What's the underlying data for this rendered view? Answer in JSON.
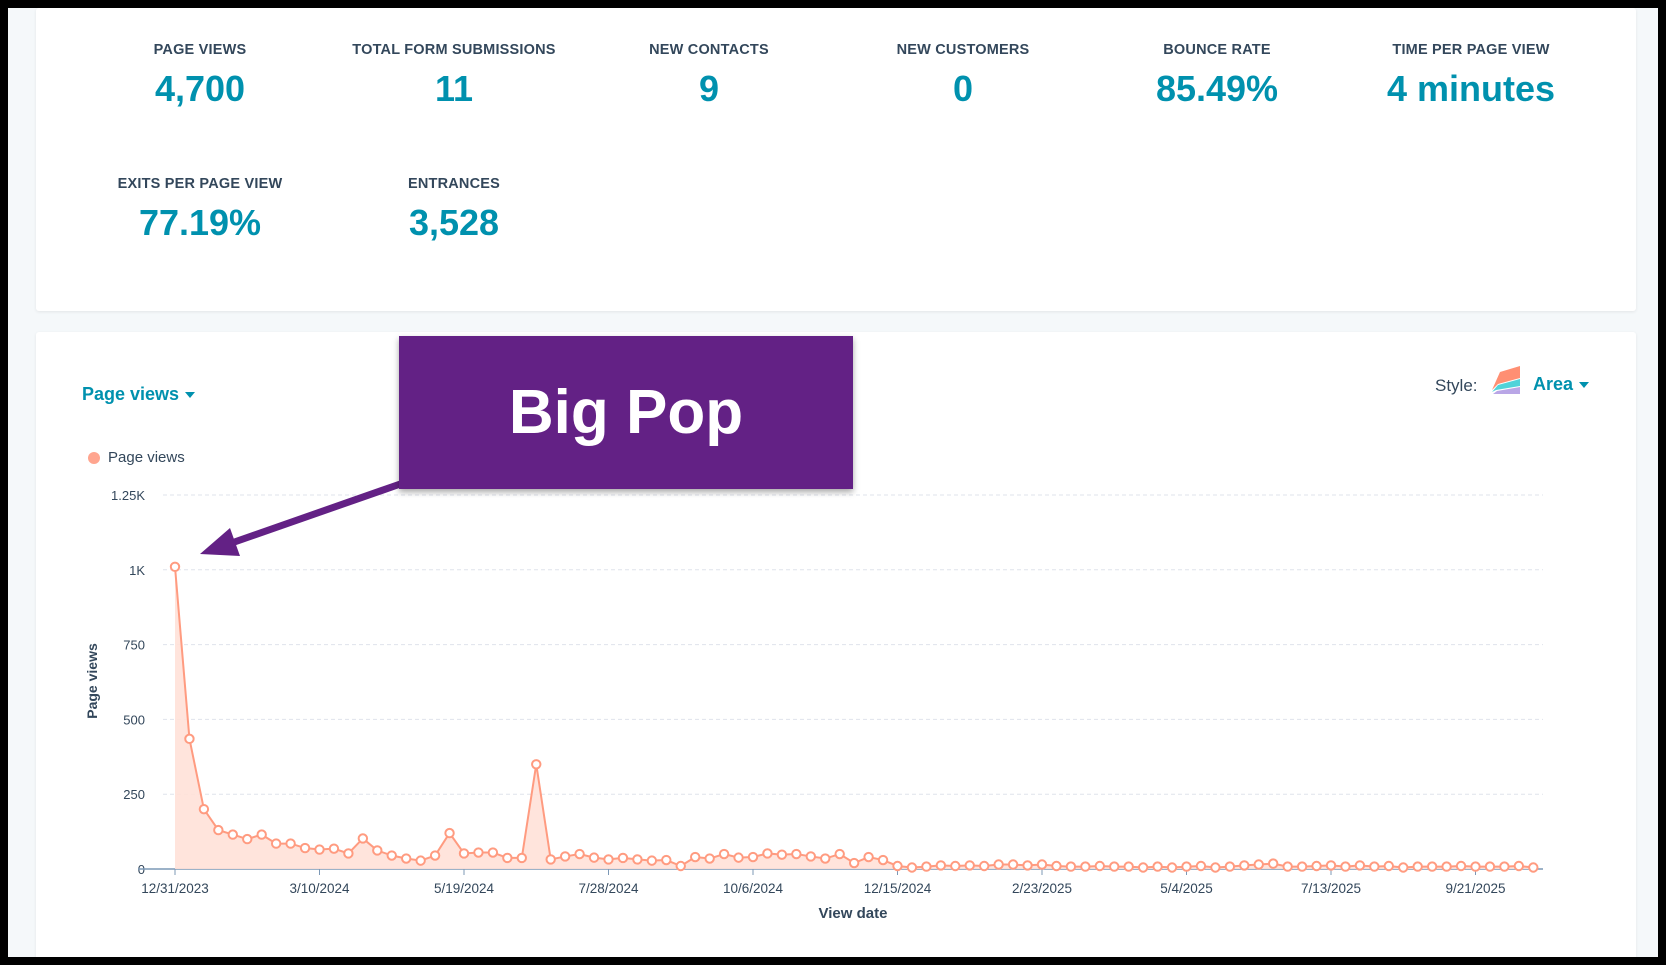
{
  "metrics": [
    {
      "label": "PAGE VIEWS",
      "value": "4,700"
    },
    {
      "label": "TOTAL FORM SUBMISSIONS",
      "value": "11"
    },
    {
      "label": "NEW CONTACTS",
      "value": "9"
    },
    {
      "label": "NEW CUSTOMERS",
      "value": "0"
    },
    {
      "label": "BOUNCE RATE",
      "value": "85.49%"
    },
    {
      "label": "TIME PER PAGE VIEW",
      "value": "4 minutes"
    },
    {
      "label": "EXITS PER PAGE VIEW",
      "value": "77.19%"
    },
    {
      "label": "ENTRANCES",
      "value": "3,528"
    }
  ],
  "chart_controls": {
    "metric_dropdown": "Page views",
    "style_label": "Style:",
    "style_value": "Area",
    "legend": "Page views"
  },
  "callout": {
    "text": "Big Pop"
  },
  "colors": {
    "accent": "#0091ae",
    "series": "#ff8f73",
    "callout": "#632185"
  },
  "chart_data": {
    "type": "area",
    "xlabel": "View date",
    "ylabel": "Page views",
    "ylim": [
      0,
      1250
    ],
    "y_ticks": [
      "0",
      "250",
      "500",
      "750",
      "1K",
      "1.25K"
    ],
    "y_tick_values": [
      0,
      250,
      500,
      750,
      1000,
      1250
    ],
    "x_ticks": [
      "12/31/2023",
      "3/10/2024",
      "5/19/2024",
      "7/28/2024",
      "10/6/2024",
      "12/15/2024",
      "2/23/2025",
      "5/4/2025",
      "7/13/2025",
      "9/21/2025"
    ],
    "x_tick_every_weeks": 10,
    "series": [
      {
        "name": "Page views",
        "values": [
          1010,
          435,
          200,
          130,
          115,
          100,
          115,
          85,
          85,
          70,
          65,
          68,
          52,
          102,
          62,
          45,
          35,
          28,
          45,
          120,
          52,
          55,
          55,
          37,
          37,
          350,
          32,
          42,
          50,
          38,
          32,
          37,
          32,
          28,
          30,
          10,
          40,
          35,
          50,
          38,
          40,
          52,
          48,
          50,
          42,
          35,
          50,
          20,
          40,
          30,
          10,
          5,
          8,
          12,
          10,
          12,
          10,
          15,
          15,
          12,
          15,
          10,
          8,
          8,
          10,
          8,
          8,
          5,
          8,
          5,
          8,
          10,
          5,
          8,
          12,
          15,
          18,
          8,
          8,
          10,
          12,
          8,
          12,
          8,
          10,
          5,
          8,
          8,
          8,
          10,
          8,
          8,
          8,
          10,
          5
        ]
      }
    ]
  }
}
